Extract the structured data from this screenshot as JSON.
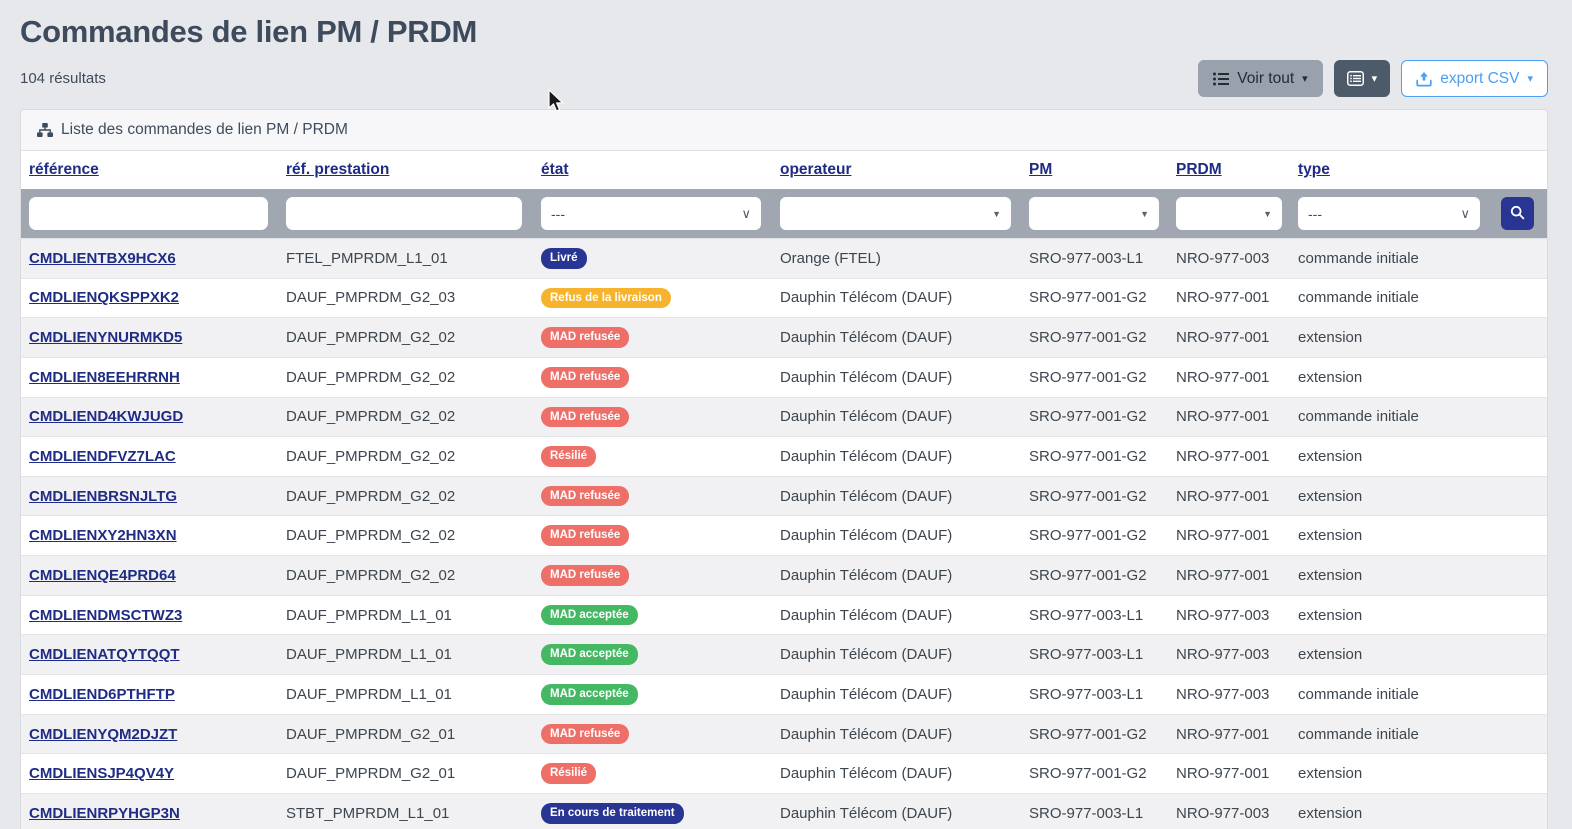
{
  "page": {
    "title": "Commandes de lien PM / PRDM",
    "results_count": "104 résultats"
  },
  "toolbar": {
    "voir_tout_label": "Voir tout",
    "voir_tout_icon": "list-ul-icon",
    "columns_button_icon": "table-list-icon",
    "export_csv_label": "export CSV",
    "export_csv_icon": "upload-icon"
  },
  "card": {
    "header_icon": "sitemap-icon",
    "header_title": "Liste des commandes de lien PM / PRDM"
  },
  "table": {
    "columns": [
      {
        "label": "référence"
      },
      {
        "label": "réf. prestation"
      },
      {
        "label": "état"
      },
      {
        "label": "operateur"
      },
      {
        "label": "PM"
      },
      {
        "label": "PRDM"
      },
      {
        "label": "type"
      }
    ],
    "filters": {
      "reference_value": "",
      "ref_prestation_value": "",
      "etat_value": "---",
      "operateur_value": "",
      "pm_value": "",
      "prdm_value": "",
      "type_value": "---",
      "search_icon": "search-icon"
    },
    "rows": [
      {
        "reference": "CMDLIENTBX9HCX6",
        "ref_prestation": "FTEL_PMPRDM_L1_01",
        "etat": "Livré",
        "etat_variant": "navy",
        "operateur": "Orange (FTEL)",
        "pm": "SRO-977-003-L1",
        "prdm": "NRO-977-003",
        "type": "commande initiale"
      },
      {
        "reference": "CMDLIENQKSPPXK2",
        "ref_prestation": "DAUF_PMPRDM_G2_03",
        "etat": "Refus de la livraison",
        "etat_variant": "amber",
        "operateur": "Dauphin Télécom (DAUF)",
        "pm": "SRO-977-001-G2",
        "prdm": "NRO-977-001",
        "type": "commande initiale"
      },
      {
        "reference": "CMDLIENYNURMKD5",
        "ref_prestation": "DAUF_PMPRDM_G2_02",
        "etat": "MAD refusée",
        "etat_variant": "red",
        "operateur": "Dauphin Télécom (DAUF)",
        "pm": "SRO-977-001-G2",
        "prdm": "NRO-977-001",
        "type": "extension"
      },
      {
        "reference": "CMDLIEN8EEHRRNH",
        "ref_prestation": "DAUF_PMPRDM_G2_02",
        "etat": "MAD refusée",
        "etat_variant": "red",
        "operateur": "Dauphin Télécom (DAUF)",
        "pm": "SRO-977-001-G2",
        "prdm": "NRO-977-001",
        "type": "extension"
      },
      {
        "reference": "CMDLIEND4KWJUGD",
        "ref_prestation": "DAUF_PMPRDM_G2_02",
        "etat": "MAD refusée",
        "etat_variant": "red",
        "operateur": "Dauphin Télécom (DAUF)",
        "pm": "SRO-977-001-G2",
        "prdm": "NRO-977-001",
        "type": "commande initiale"
      },
      {
        "reference": "CMDLIENDFVZ7LAC",
        "ref_prestation": "DAUF_PMPRDM_G2_02",
        "etat": "Résilié",
        "etat_variant": "red",
        "operateur": "Dauphin Télécom (DAUF)",
        "pm": "SRO-977-001-G2",
        "prdm": "NRO-977-001",
        "type": "extension"
      },
      {
        "reference": "CMDLIENBRSNJLTG",
        "ref_prestation": "DAUF_PMPRDM_G2_02",
        "etat": "MAD refusée",
        "etat_variant": "red",
        "operateur": "Dauphin Télécom (DAUF)",
        "pm": "SRO-977-001-G2",
        "prdm": "NRO-977-001",
        "type": "extension"
      },
      {
        "reference": "CMDLIENXY2HN3XN",
        "ref_prestation": "DAUF_PMPRDM_G2_02",
        "etat": "MAD refusée",
        "etat_variant": "red",
        "operateur": "Dauphin Télécom (DAUF)",
        "pm": "SRO-977-001-G2",
        "prdm": "NRO-977-001",
        "type": "extension"
      },
      {
        "reference": "CMDLIENQE4PRD64",
        "ref_prestation": "DAUF_PMPRDM_G2_02",
        "etat": "MAD refusée",
        "etat_variant": "red",
        "operateur": "Dauphin Télécom (DAUF)",
        "pm": "SRO-977-001-G2",
        "prdm": "NRO-977-001",
        "type": "extension"
      },
      {
        "reference": "CMDLIENDMSCTWZ3",
        "ref_prestation": "DAUF_PMPRDM_L1_01",
        "etat": "MAD acceptée",
        "etat_variant": "green",
        "operateur": "Dauphin Télécom (DAUF)",
        "pm": "SRO-977-003-L1",
        "prdm": "NRO-977-003",
        "type": "extension"
      },
      {
        "reference": "CMDLIENATQYTQQT",
        "ref_prestation": "DAUF_PMPRDM_L1_01",
        "etat": "MAD acceptée",
        "etat_variant": "green",
        "operateur": "Dauphin Télécom (DAUF)",
        "pm": "SRO-977-003-L1",
        "prdm": "NRO-977-003",
        "type": "extension"
      },
      {
        "reference": "CMDLIEND6PTHFTP",
        "ref_prestation": "DAUF_PMPRDM_L1_01",
        "etat": "MAD acceptée",
        "etat_variant": "green",
        "operateur": "Dauphin Télécom (DAUF)",
        "pm": "SRO-977-003-L1",
        "prdm": "NRO-977-003",
        "type": "commande initiale"
      },
      {
        "reference": "CMDLIENYQM2DJZT",
        "ref_prestation": "DAUF_PMPRDM_G2_01",
        "etat": "MAD refusée",
        "etat_variant": "red",
        "operateur": "Dauphin Télécom (DAUF)",
        "pm": "SRO-977-001-G2",
        "prdm": "NRO-977-001",
        "type": "commande initiale"
      },
      {
        "reference": "CMDLIENSJP4QV4Y",
        "ref_prestation": "DAUF_PMPRDM_G2_01",
        "etat": "Résilié",
        "etat_variant": "red",
        "operateur": "Dauphin Télécom (DAUF)",
        "pm": "SRO-977-001-G2",
        "prdm": "NRO-977-001",
        "type": "extension"
      },
      {
        "reference": "CMDLIENRPYHGP3N",
        "ref_prestation": "STBT_PMPRDM_L1_01",
        "etat": "En cours de traitement",
        "etat_variant": "navy",
        "operateur": "Dauphin Télécom (DAUF)",
        "pm": "SRO-977-003-L1",
        "prdm": "NRO-977-003",
        "type": "extension"
      }
    ]
  },
  "status_colors": {
    "navy": "#283593",
    "amber": "#f7b32c",
    "red": "#ee6e68",
    "green": "#45b864"
  }
}
